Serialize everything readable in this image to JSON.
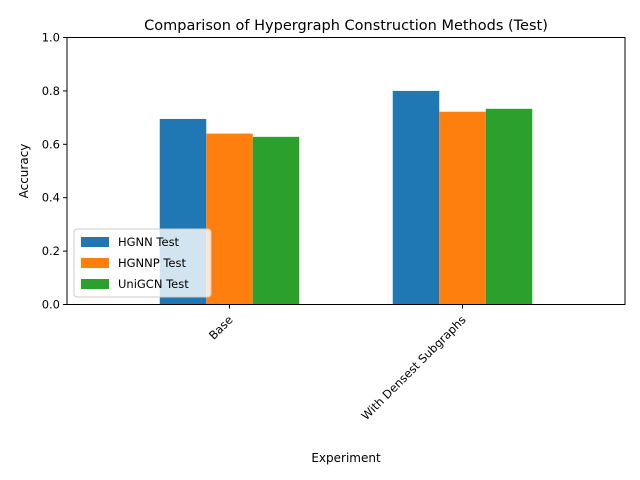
{
  "chart_data": {
    "type": "bar",
    "title": "Comparison of Hypergraph Construction Methods (Test)",
    "xlabel": "Experiment",
    "ylabel": "Accuracy",
    "categories": [
      "Base",
      "With Densest Subgraphs"
    ],
    "series": [
      {
        "name": "HGNN Test",
        "color": "#1f77b4",
        "values": [
          0.695,
          0.8
        ]
      },
      {
        "name": "HGNNP Test",
        "color": "#ff7f0e",
        "values": [
          0.64,
          0.722
        ]
      },
      {
        "name": "UniGCN Test",
        "color": "#2ca02c",
        "values": [
          0.628,
          0.733
        ]
      }
    ],
    "ylim": [
      0,
      1
    ],
    "yticks": [
      "0.0",
      "0.2",
      "0.4",
      "0.6",
      "0.8",
      "1.0"
    ],
    "grid": false,
    "legend_position": "lower-left"
  }
}
